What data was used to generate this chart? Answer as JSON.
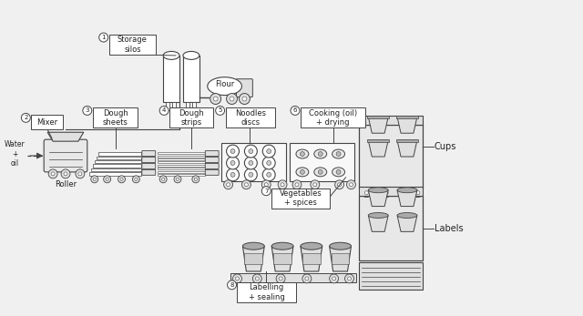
{
  "bg_color": "#f0f0f0",
  "line_color": "#444444",
  "fill_color": "#ffffff",
  "text_color": "#222222",
  "label_bg": "#ffffff",
  "conveyor_fill": "#e0e0e0",
  "machine_fill": "#e8e8e8",
  "dark_fill": "#aaaaaa",
  "steps": {
    "s1": {
      "num": "1",
      "label": "Storage\nsilos"
    },
    "s2": {
      "num": "2",
      "label": "Mixer"
    },
    "s3": {
      "num": "3",
      "label": "Dough\nsheets"
    },
    "s4": {
      "num": "4",
      "label": "Dough\nstrips"
    },
    "s5": {
      "num": "5",
      "label": "Noodles\ndiscs"
    },
    "s6": {
      "num": "6",
      "label": "Cooking (oil)\n+ drying"
    },
    "s7": {
      "num": "7",
      "label": "Vegetables\n+ spices"
    },
    "s8": {
      "num": "8",
      "label": "Labelling\n+ sealing"
    }
  },
  "water_oil": "Water\n+\noil",
  "roller": "Roller",
  "flour": "Flour",
  "cups_label": "Cups",
  "labels_label": "Labels"
}
